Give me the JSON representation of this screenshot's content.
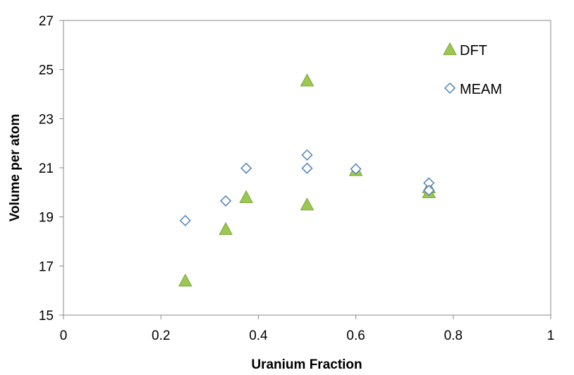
{
  "chart_data": {
    "type": "scatter",
    "title": "",
    "xlabel": "Uranium Fraction",
    "ylabel": "Volume per atom",
    "xlim": [
      0,
      1
    ],
    "ylim": [
      15,
      27
    ],
    "x_ticks": [
      "0",
      "0.2",
      "0.4",
      "0.6",
      "0.8",
      "1"
    ],
    "y_ticks": [
      "15",
      "17",
      "19",
      "21",
      "23",
      "25",
      "27"
    ],
    "grid": false,
    "legend_position": "top-right",
    "series": [
      {
        "name": "DFT",
        "marker": "triangle",
        "color": "#9bc84f",
        "stroke": "#7aa33a",
        "points": [
          {
            "x": 0.25,
            "y": 16.4
          },
          {
            "x": 0.333,
            "y": 18.5
          },
          {
            "x": 0.375,
            "y": 19.8
          },
          {
            "x": 0.5,
            "y": 24.55
          },
          {
            "x": 0.5,
            "y": 19.5
          },
          {
            "x": 0.6,
            "y": 20.9
          },
          {
            "x": 0.75,
            "y": 20.2
          },
          {
            "x": 0.75,
            "y": 20.0
          }
        ]
      },
      {
        "name": "MEAM",
        "marker": "diamond",
        "color": "#ffffff",
        "stroke": "#4f81bd",
        "points": [
          {
            "x": 0.25,
            "y": 18.85
          },
          {
            "x": 0.333,
            "y": 19.65
          },
          {
            "x": 0.375,
            "y": 20.98
          },
          {
            "x": 0.5,
            "y": 21.52
          },
          {
            "x": 0.5,
            "y": 20.98
          },
          {
            "x": 0.6,
            "y": 20.95
          },
          {
            "x": 0.75,
            "y": 20.38
          },
          {
            "x": 0.75,
            "y": 20.08
          }
        ]
      }
    ]
  }
}
